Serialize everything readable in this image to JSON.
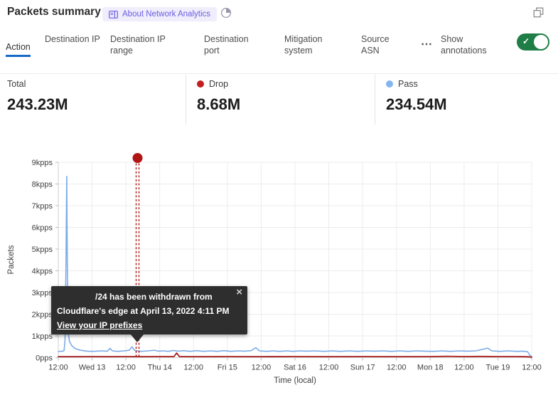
{
  "header": {
    "title": "Packets summary",
    "about_badge": "About Network Analytics"
  },
  "tabs": [
    {
      "label": "Action",
      "active": true
    },
    {
      "label": "Destination IP",
      "active": false
    },
    {
      "label": "Destination IP range",
      "active": false
    },
    {
      "label": "Destination port",
      "active": false
    },
    {
      "label": "Mitigation system",
      "active": false
    },
    {
      "label": "Source ASN",
      "active": false
    }
  ],
  "more_label": "⋯",
  "annotations_toggle": {
    "label": "Show annotations",
    "state": "on",
    "check_glyph": "✓"
  },
  "stats": [
    {
      "label": "Total",
      "value": "243.23M"
    },
    {
      "label": "Drop",
      "value": "8.68M",
      "dot_color": "#c21f1f"
    },
    {
      "label": "Pass",
      "value": "234.54M",
      "dot_color": "#85b5ef"
    }
  ],
  "tooltip": {
    "line1": "/24 has been withdrawn from",
    "line2": "Cloudflare's edge at April 13, 2022 4:11 PM",
    "link": "View your IP prefixes",
    "close_glyph": "×"
  },
  "colors": {
    "accent_blue": "#1569c7",
    "toggle_green": "#1e7e45",
    "badge_bg": "#f0edfc",
    "badge_text": "#6a5ee0",
    "drop_red": "#c21f1f",
    "pass_blue": "#85b5ef",
    "line_pass": "#7cabe8",
    "line_drop": "#a81c1c",
    "annotation_red": "#b01515",
    "tooltip_bg": "#2e2e2e",
    "gridline": "#ececec"
  },
  "chart_data": {
    "type": "line",
    "title": "",
    "xlabel": "Time (local)",
    "ylabel": "Packets",
    "grid": true,
    "legend_position": "top-stats-row",
    "x_ticks": [
      "12:00",
      "Wed 13",
      "12:00",
      "Thu 14",
      "12:00",
      "Fri 15",
      "12:00",
      "Sat 16",
      "12:00",
      "Sun 17",
      "12:00",
      "Mon 18",
      "12:00",
      "Tue 19",
      "12:00"
    ],
    "y_ticks": [
      "0pps",
      "1kpps",
      "2kpps",
      "3kpps",
      "4kpps",
      "5kpps",
      "6kpps",
      "7kpps",
      "8kpps",
      "9kpps"
    ],
    "ylim": [
      0,
      9
    ],
    "y_unit": "kpps",
    "x_unit": "tick-index (each tick = 12 h)",
    "series": [
      {
        "name": "Pass",
        "color": "#7cabe8",
        "width": 1.6,
        "points": [
          [
            0,
            0.28
          ],
          [
            0.06,
            0.3
          ],
          [
            0.12,
            0.29
          ],
          [
            0.17,
            0.32
          ],
          [
            0.2,
            0.8
          ],
          [
            0.23,
            4.5
          ],
          [
            0.25,
            8.35
          ],
          [
            0.27,
            4.0
          ],
          [
            0.29,
            1.2
          ],
          [
            0.33,
            0.75
          ],
          [
            0.4,
            0.55
          ],
          [
            0.5,
            0.42
          ],
          [
            0.65,
            0.34
          ],
          [
            0.85,
            0.3
          ],
          [
            1.05,
            0.29
          ],
          [
            1.25,
            0.31
          ],
          [
            1.45,
            0.3
          ],
          [
            1.53,
            0.43
          ],
          [
            1.6,
            0.31
          ],
          [
            1.75,
            0.29
          ],
          [
            1.95,
            0.31
          ],
          [
            2.1,
            0.34
          ],
          [
            2.18,
            0.5
          ],
          [
            2.26,
            0.33
          ],
          [
            2.45,
            0.29
          ],
          [
            2.65,
            0.31
          ],
          [
            2.85,
            0.34
          ],
          [
            2.95,
            0.3
          ],
          [
            3.1,
            0.31
          ],
          [
            3.25,
            0.29
          ],
          [
            3.4,
            0.33
          ],
          [
            3.55,
            0.3
          ],
          [
            3.7,
            0.32
          ],
          [
            3.9,
            0.29
          ],
          [
            4.1,
            0.32
          ],
          [
            4.3,
            0.29
          ],
          [
            4.5,
            0.31
          ],
          [
            4.7,
            0.29
          ],
          [
            4.9,
            0.32
          ],
          [
            5.1,
            0.29
          ],
          [
            5.3,
            0.31
          ],
          [
            5.5,
            0.3
          ],
          [
            5.7,
            0.32
          ],
          [
            5.84,
            0.46
          ],
          [
            5.95,
            0.31
          ],
          [
            6.15,
            0.29
          ],
          [
            6.35,
            0.31
          ],
          [
            6.55,
            0.29
          ],
          [
            6.75,
            0.31
          ],
          [
            6.95,
            0.29
          ],
          [
            7.15,
            0.31
          ],
          [
            7.35,
            0.3
          ],
          [
            7.6,
            0.31
          ],
          [
            7.85,
            0.29
          ],
          [
            8.1,
            0.31
          ],
          [
            8.35,
            0.29
          ],
          [
            8.6,
            0.31
          ],
          [
            8.85,
            0.29
          ],
          [
            9.1,
            0.31
          ],
          [
            9.35,
            0.3
          ],
          [
            9.6,
            0.31
          ],
          [
            9.85,
            0.29
          ],
          [
            10.1,
            0.31
          ],
          [
            10.35,
            0.29
          ],
          [
            10.6,
            0.31
          ],
          [
            10.85,
            0.3
          ],
          [
            11.1,
            0.29
          ],
          [
            11.35,
            0.31
          ],
          [
            11.6,
            0.29
          ],
          [
            11.85,
            0.31
          ],
          [
            12.1,
            0.3
          ],
          [
            12.35,
            0.31
          ],
          [
            12.7,
            0.44
          ],
          [
            12.82,
            0.31
          ],
          [
            13.05,
            0.29
          ],
          [
            13.3,
            0.31
          ],
          [
            13.55,
            0.29
          ],
          [
            13.75,
            0.3
          ],
          [
            13.88,
            0.27
          ],
          [
            13.95,
            0.1
          ],
          [
            14,
            0.06
          ]
        ]
      },
      {
        "name": "Drop",
        "color": "#a81c1c",
        "width": 1.8,
        "points": [
          [
            0,
            0.045
          ],
          [
            0.5,
            0.045
          ],
          [
            1,
            0.05
          ],
          [
            1.5,
            0.045
          ],
          [
            2,
            0.05
          ],
          [
            2.5,
            0.045
          ],
          [
            3,
            0.05
          ],
          [
            3.42,
            0.05
          ],
          [
            3.5,
            0.21
          ],
          [
            3.58,
            0.05
          ],
          [
            4,
            0.045
          ],
          [
            5,
            0.05
          ],
          [
            6,
            0.045
          ],
          [
            7,
            0.05
          ],
          [
            8,
            0.045
          ],
          [
            9,
            0.05
          ],
          [
            10,
            0.045
          ],
          [
            11,
            0.05
          ],
          [
            11.5,
            0.06
          ],
          [
            12,
            0.05
          ],
          [
            12.5,
            0.055
          ],
          [
            13,
            0.05
          ],
          [
            13.6,
            0.05
          ],
          [
            13.9,
            0.04
          ],
          [
            14,
            0.02
          ]
        ]
      }
    ],
    "annotation": {
      "x": 2.344,
      "color": "#b01515",
      "style": "red dot above plot with double dashed vertical line to axis",
      "tooltip_text": "/24 has been withdrawn from Cloudflare's edge at April 13, 2022 4:11 PM"
    }
  }
}
